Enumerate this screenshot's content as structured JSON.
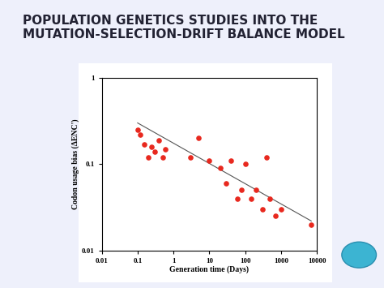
{
  "chart_data": {
    "type": "scatter",
    "title": "POPULATION GENETICS STUDIES INTO THE MUTATION-SELECTION-DRIFT BALANCE MODEL",
    "x_label": "Generation time (Days)",
    "y_label": "Codon usage bias (ΔENC')",
    "log": true,
    "xlim": [
      0.01,
      10000
    ],
    "xticks": [
      0.01,
      0.1,
      1,
      10,
      100,
      1000,
      10000
    ],
    "ylim": [
      0.01,
      1
    ],
    "yticks": [
      0.01,
      0.1,
      1
    ],
    "series": [
      {
        "type": "scatter",
        "color": "#e8281e",
        "marker": "circle",
        "x": [
          0.1,
          0.12,
          0.15,
          0.2,
          0.25,
          0.3,
          0.4,
          0.5,
          0.6,
          3,
          5,
          10,
          20,
          30,
          40,
          60,
          80,
          100,
          150,
          200,
          300,
          400,
          500,
          700,
          1000,
          7000
        ],
        "values": [
          0.25,
          0.22,
          0.17,
          0.12,
          0.16,
          0.14,
          0.19,
          0.12,
          0.15,
          0.12,
          0.2,
          0.11,
          0.09,
          0.06,
          0.11,
          0.04,
          0.05,
          0.1,
          0.04,
          0.05,
          0.03,
          0.12,
          0.04,
          0.025,
          0.03,
          0.02
        ]
      },
      {
        "type": "line",
        "color": "#555555",
        "line_style": "solid",
        "x": [
          0.1,
          7000
        ],
        "values": [
          0.3,
          0.022
        ]
      }
    ]
  }
}
